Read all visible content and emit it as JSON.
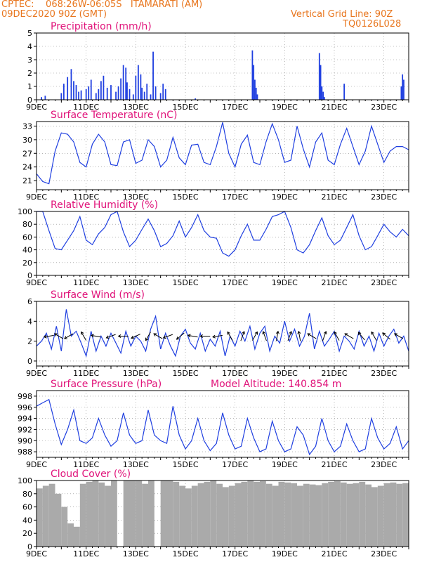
{
  "header": {
    "line1": "CPTEC:    068:26W-06:05S   ITAMARATI (AM)",
    "line2": "09DEC2020 90Z (GMT)",
    "vgrid": "Vertical Grid Line: 90Z",
    "code": "TQ0126L028"
  },
  "colors": {
    "header": "#e8761e",
    "title": "#e0137a",
    "line": "#1f3fe0",
    "bar": "#1f3fe0",
    "cloud": "#aaaaaa",
    "arrow": "#000000",
    "grid": "#888888"
  },
  "x_ticks": [
    "9DEC",
    "11DEC",
    "13DEC",
    "15DEC",
    "17DEC",
    "19DEC",
    "21DEC",
    "23DEC"
  ],
  "x_range_days": [
    0,
    15
  ],
  "chart_data": [
    {
      "type": "bar",
      "title": "Precipitation (mm/h)",
      "ylim": [
        0,
        5
      ],
      "yticks": [
        0,
        1,
        2,
        3,
        4,
        5
      ],
      "x": [
        0.2,
        0.35,
        1.0,
        1.1,
        1.25,
        1.4,
        1.5,
        1.6,
        1.7,
        1.8,
        2.0,
        2.1,
        2.2,
        2.4,
        2.5,
        2.6,
        2.7,
        2.85,
        3.0,
        3.2,
        3.3,
        3.4,
        3.5,
        3.6,
        3.65,
        3.75,
        3.9,
        4.0,
        4.1,
        4.2,
        4.25,
        4.35,
        4.45,
        4.6,
        4.7,
        4.8,
        5.0,
        5.1,
        5.2,
        6.4,
        8.7,
        8.75,
        8.8,
        8.85,
        8.9,
        11.4,
        11.45,
        11.5,
        11.55,
        11.6,
        12.4,
        14.7,
        14.75,
        14.8
      ],
      "values": [
        0.2,
        0.3,
        0.5,
        1.2,
        1.7,
        2.3,
        1.4,
        1.1,
        0.6,
        0.7,
        0.8,
        1.0,
        1.5,
        0.5,
        0.8,
        1.4,
        1.8,
        0.9,
        1.1,
        0.6,
        1.0,
        1.6,
        2.6,
        2.4,
        1.3,
        0.8,
        0.4,
        1.8,
        2.6,
        1.9,
        0.9,
        0.6,
        1.2,
        0.4,
        3.6,
        1.0,
        0.5,
        1.2,
        0.8,
        0.1,
        3.7,
        2.6,
        1.5,
        0.9,
        0.4,
        3.5,
        2.6,
        1.0,
        0.6,
        0.2,
        1.2,
        1.0,
        1.9,
        1.5
      ]
    },
    {
      "type": "line",
      "title": "Surface Temperature (nC)",
      "ylim": [
        19,
        34
      ],
      "yticks": [
        21,
        24,
        27,
        30,
        33
      ],
      "x": [
        0,
        0.25,
        0.5,
        0.75,
        1.0,
        1.25,
        1.5,
        1.75,
        2.0,
        2.25,
        2.5,
        2.75,
        3.0,
        3.25,
        3.5,
        3.75,
        4.0,
        4.25,
        4.5,
        4.75,
        5.0,
        5.25,
        5.5,
        5.75,
        6.0,
        6.25,
        6.5,
        6.75,
        7.0,
        7.25,
        7.5,
        7.75,
        8.0,
        8.25,
        8.5,
        8.75,
        9.0,
        9.25,
        9.5,
        9.75,
        10.0,
        10.25,
        10.5,
        10.75,
        11.0,
        11.25,
        11.5,
        11.75,
        12.0,
        12.25,
        12.5,
        12.75,
        13.0,
        13.25,
        13.5,
        13.75,
        14.0,
        14.25,
        14.5,
        14.75,
        15.0
      ],
      "values": [
        22.5,
        20.8,
        20.3,
        27.5,
        31.5,
        31.2,
        29.5,
        25.0,
        24.0,
        29.0,
        31.2,
        29.5,
        24.5,
        24.3,
        29.5,
        30.0,
        24.8,
        25.5,
        30.0,
        28.5,
        24.0,
        25.5,
        30.5,
        26.0,
        24.5,
        28.8,
        29.0,
        25.0,
        24.5,
        28.5,
        33.8,
        27.0,
        24.0,
        29.0,
        31.0,
        25.0,
        24.5,
        29.5,
        33.5,
        30.0,
        25.0,
        25.5,
        33.0,
        28.0,
        24.0,
        29.5,
        31.5,
        25.5,
        24.5,
        29.0,
        32.5,
        28.5,
        24.5,
        27.5,
        33.0,
        29.0,
        25.0,
        27.5,
        28.5,
        28.5,
        27.8
      ]
    },
    {
      "type": "line",
      "title": "Relative Humidity (%)",
      "ylim": [
        0,
        100
      ],
      "yticks": [
        0,
        20,
        40,
        60,
        80,
        100
      ],
      "x": [
        0,
        0.25,
        0.5,
        0.75,
        1.0,
        1.25,
        1.5,
        1.75,
        2.0,
        2.25,
        2.5,
        2.75,
        3.0,
        3.25,
        3.5,
        3.75,
        4.0,
        4.25,
        4.5,
        4.75,
        5.0,
        5.25,
        5.5,
        5.75,
        6.0,
        6.25,
        6.5,
        6.75,
        7.0,
        7.25,
        7.5,
        7.75,
        8.0,
        8.25,
        8.5,
        8.75,
        9.0,
        9.25,
        9.5,
        9.75,
        10.0,
        10.25,
        10.5,
        10.75,
        11.0,
        11.25,
        11.5,
        11.75,
        12.0,
        12.25,
        12.5,
        12.75,
        13.0,
        13.25,
        13.5,
        13.75,
        14.0,
        14.25,
        14.5,
        14.75,
        15.0
      ],
      "values": [
        100,
        100,
        70,
        42,
        40,
        55,
        70,
        92,
        55,
        48,
        65,
        75,
        95,
        100,
        68,
        45,
        55,
        72,
        88,
        70,
        45,
        50,
        62,
        85,
        60,
        75,
        95,
        70,
        60,
        58,
        35,
        30,
        40,
        62,
        80,
        55,
        55,
        72,
        92,
        95,
        100,
        75,
        40,
        35,
        48,
        70,
        90,
        62,
        48,
        55,
        75,
        95,
        62,
        40,
        45,
        62,
        80,
        68,
        60,
        72,
        62
      ]
    },
    {
      "type": "line",
      "title": "Surface Wind (m/s)",
      "ylim": [
        -0.5,
        6
      ],
      "yticks": [
        0,
        2,
        4,
        6
      ],
      "x": [
        0,
        0.2,
        0.4,
        0.6,
        0.8,
        1.0,
        1.2,
        1.4,
        1.6,
        1.8,
        2.0,
        2.2,
        2.4,
        2.6,
        2.8,
        3.0,
        3.2,
        3.4,
        3.6,
        3.8,
        4.0,
        4.2,
        4.4,
        4.6,
        4.8,
        5.0,
        5.2,
        5.4,
        5.6,
        5.8,
        6.0,
        6.2,
        6.4,
        6.6,
        6.8,
        7.0,
        7.2,
        7.4,
        7.6,
        7.8,
        8.0,
        8.2,
        8.4,
        8.6,
        8.8,
        9.0,
        9.2,
        9.4,
        9.6,
        9.8,
        10.0,
        10.2,
        10.4,
        10.6,
        10.8,
        11.0,
        11.2,
        11.4,
        11.6,
        11.8,
        12.0,
        12.2,
        12.4,
        12.6,
        12.8,
        13.0,
        13.2,
        13.4,
        13.6,
        13.8,
        14.0,
        14.2,
        14.4,
        14.6,
        14.8,
        15.0
      ],
      "values": [
        1.5,
        2.0,
        2.8,
        1.2,
        3.5,
        1.0,
        5.2,
        2.5,
        3.0,
        1.8,
        0.5,
        3.0,
        1.0,
        2.5,
        1.5,
        2.8,
        1.8,
        0.8,
        3.0,
        1.5,
        2.5,
        2.0,
        1.0,
        3.2,
        4.5,
        1.2,
        2.8,
        1.5,
        0.5,
        2.5,
        3.2,
        1.8,
        1.2,
        2.8,
        1.0,
        2.2,
        1.5,
        3.0,
        0.5,
        2.5,
        1.5,
        3.0,
        2.0,
        3.5,
        1.2,
        2.8,
        3.5,
        1.0,
        2.5,
        1.8,
        4.0,
        2.0,
        3.2,
        1.5,
        2.5,
        4.8,
        1.2,
        3.0,
        1.5,
        2.2,
        3.0,
        1.0,
        2.5,
        2.0,
        1.2,
        3.0,
        1.5,
        2.5,
        1.0,
        2.8,
        1.5,
        2.5,
        3.2,
        1.8,
        2.5,
        1.0
      ],
      "wind_arrows": [
        {
          "x": 0.5,
          "dir": 260
        },
        {
          "x": 0.9,
          "dir": 300
        },
        {
          "x": 1.3,
          "dir": 240
        },
        {
          "x": 1.9,
          "dir": 330
        },
        {
          "x": 2.4,
          "dir": 280
        },
        {
          "x": 3.0,
          "dir": 250
        },
        {
          "x": 3.5,
          "dir": 270
        },
        {
          "x": 4.0,
          "dir": 245
        },
        {
          "x": 4.5,
          "dir": 210
        },
        {
          "x": 4.9,
          "dir": 300
        },
        {
          "x": 5.3,
          "dir": 250
        },
        {
          "x": 5.8,
          "dir": 230
        },
        {
          "x": 6.3,
          "dir": 280
        },
        {
          "x": 6.8,
          "dir": 270
        },
        {
          "x": 7.3,
          "dir": 260
        },
        {
          "x": 7.8,
          "dir": 330
        },
        {
          "x": 8.3,
          "dir": 20
        },
        {
          "x": 8.8,
          "dir": 30
        },
        {
          "x": 9.2,
          "dir": 340
        },
        {
          "x": 9.7,
          "dir": 10
        },
        {
          "x": 10.2,
          "dir": 20
        },
        {
          "x": 10.6,
          "dir": 350
        },
        {
          "x": 11.1,
          "dir": 300
        },
        {
          "x": 11.6,
          "dir": 20
        },
        {
          "x": 12.1,
          "dir": 330
        },
        {
          "x": 12.6,
          "dir": 300
        },
        {
          "x": 13.1,
          "dir": 320
        },
        {
          "x": 13.6,
          "dir": 330
        },
        {
          "x": 14.1,
          "dir": 310
        },
        {
          "x": 14.6,
          "dir": 300
        }
      ]
    },
    {
      "type": "line",
      "title": "Surface Pressure (hPa)",
      "subtitle": "Model Altitude: 140.854 m",
      "ylim": [
        987,
        999
      ],
      "yticks": [
        988,
        990,
        992,
        994,
        996,
        998
      ],
      "x": [
        0,
        0.25,
        0.5,
        0.75,
        1.0,
        1.25,
        1.5,
        1.75,
        2.0,
        2.25,
        2.5,
        2.75,
        3.0,
        3.25,
        3.5,
        3.75,
        4.0,
        4.25,
        4.5,
        4.75,
        5.0,
        5.25,
        5.5,
        5.75,
        6.0,
        6.25,
        6.5,
        6.75,
        7.0,
        7.25,
        7.5,
        7.75,
        8.0,
        8.25,
        8.5,
        8.75,
        9.0,
        9.25,
        9.5,
        9.75,
        10.0,
        10.25,
        10.5,
        10.75,
        11.0,
        11.25,
        11.5,
        11.75,
        12.0,
        12.25,
        12.5,
        12.75,
        13.0,
        13.25,
        13.5,
        13.75,
        14.0,
        14.25,
        14.5,
        14.75,
        15.0
      ],
      "values": [
        996.2,
        996.8,
        997.4,
        993.0,
        989.3,
        992.0,
        995.5,
        990.0,
        989.5,
        990.5,
        994.0,
        991.0,
        989.0,
        990.0,
        995.0,
        991.0,
        989.5,
        990.0,
        995.5,
        991.0,
        990.0,
        989.5,
        996.2,
        991.0,
        988.5,
        990.0,
        994.0,
        990.0,
        988.2,
        989.5,
        995.0,
        991.0,
        988.5,
        989.0,
        994.0,
        990.5,
        988.0,
        988.5,
        993.5,
        990.0,
        988.0,
        988.5,
        992.5,
        991.0,
        987.5,
        989.0,
        994.0,
        990.0,
        988.0,
        989.0,
        993.0,
        990.0,
        988.0,
        988.5,
        994.0,
        990.5,
        988.5,
        989.5,
        992.5,
        988.5,
        990.0
      ]
    },
    {
      "type": "bar",
      "title": "Cloud Cover (%)",
      "ylim": [
        0,
        100
      ],
      "yticks": [
        0,
        20,
        40,
        60,
        80,
        100
      ],
      "x": [
        0,
        0.25,
        0.5,
        0.75,
        1.0,
        1.25,
        1.5,
        1.75,
        2.0,
        2.25,
        2.5,
        2.75,
        3.0,
        3.25,
        3.5,
        3.75,
        4.0,
        4.25,
        4.5,
        4.75,
        5.0,
        5.25,
        5.5,
        5.75,
        6.0,
        6.25,
        6.5,
        6.75,
        7.0,
        7.25,
        7.5,
        7.75,
        8.0,
        8.25,
        8.5,
        8.75,
        9.0,
        9.25,
        9.5,
        9.75,
        10.0,
        10.25,
        10.5,
        10.75,
        11.0,
        11.25,
        11.5,
        11.75,
        12.0,
        12.25,
        12.5,
        12.75,
        13.0,
        13.25,
        13.5,
        13.75,
        14.0,
        14.25,
        14.5,
        14.75
      ],
      "values": [
        88,
        92,
        95,
        80,
        60,
        35,
        30,
        95,
        98,
        100,
        97,
        92,
        100,
        0,
        100,
        100,
        100,
        95,
        100,
        0,
        100,
        100,
        98,
        92,
        88,
        92,
        96,
        98,
        100,
        95,
        90,
        92,
        96,
        98,
        100,
        98,
        99,
        95,
        92,
        98,
        97,
        96,
        92,
        95,
        94,
        93,
        96,
        98,
        99,
        97,
        95,
        96,
        98,
        94,
        90,
        92,
        96,
        97,
        95,
        96
      ]
    }
  ]
}
